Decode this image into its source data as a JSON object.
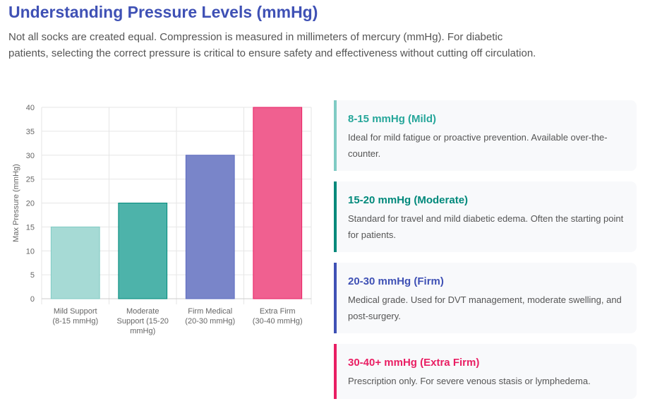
{
  "header": {
    "title": "Understanding Pressure Levels (mmHg)",
    "intro": "Not all socks are created equal. Compression is measured in millimeters of mercury (mmHg). For diabetic patients, selecting the correct pressure is critical to ensure safety and effectiveness without cutting off circulation."
  },
  "chart_data": {
    "type": "bar",
    "title": "",
    "xlabel": "",
    "ylabel": "Max Pressure (mmHg)",
    "ylim": [
      0,
      40
    ],
    "yticks": [
      0,
      5,
      10,
      15,
      20,
      25,
      30,
      35,
      40
    ],
    "grid": true,
    "categories": [
      [
        "Mild Support",
        "(8-15 mmHg)"
      ],
      [
        "Moderate",
        "Support (15-20",
        "mmHg)"
      ],
      [
        "Firm Medical",
        "(20-30 mmHg)"
      ],
      [
        "Extra Firm",
        "(30-40 mmHg)"
      ]
    ],
    "values": [
      15,
      20,
      30,
      40
    ],
    "colors": [
      "#a6dad5",
      "#4db3aa",
      "#7985c9",
      "#f06090"
    ],
    "borders": [
      "#80cbc4",
      "#00897b",
      "#5c6bc0",
      "#e91e63"
    ]
  },
  "cards": [
    {
      "title": "8-15 mmHg (Mild)",
      "text": "Ideal for mild fatigue or proactive prevention. Available over-the-counter.",
      "color": "#80cbc4",
      "title_color": "#26a69a"
    },
    {
      "title": "15-20 mmHg (Moderate)",
      "text": "Standard for travel and mild diabetic edema. Often the starting point for patients.",
      "color": "#00897b",
      "title_color": "#00897b"
    },
    {
      "title": "20-30 mmHg (Firm)",
      "text": "Medical grade. Used for DVT management, moderate swelling, and post-surgery.",
      "color": "#3f51b5",
      "title_color": "#3f51b5"
    },
    {
      "title": "30-40+ mmHg (Extra Firm)",
      "text": "Prescription only. For severe venous stasis or lymphedema.",
      "color": "#e91e63",
      "title_color": "#e91e63"
    }
  ]
}
